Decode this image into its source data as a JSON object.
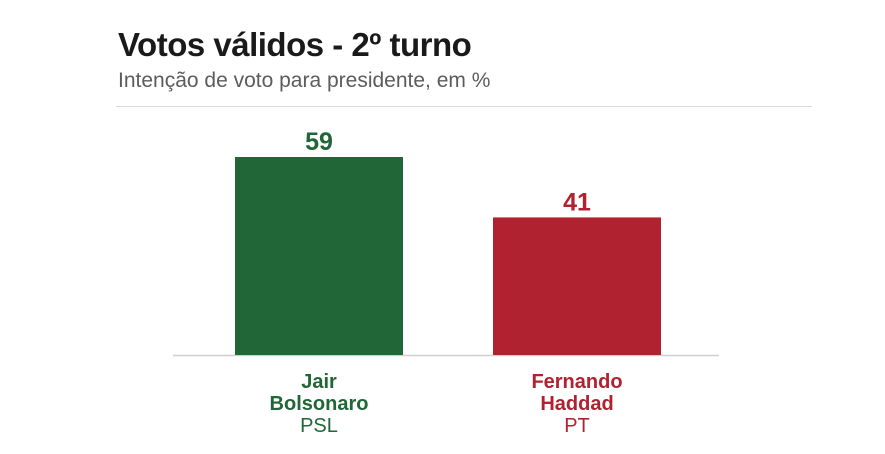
{
  "chart_data": {
    "type": "bar",
    "title": "Votos válidos - 2º turno",
    "subtitle": "Intenção de voto para presidente, em %",
    "categories": [
      {
        "name_line1": "Jair",
        "name_line2": "Bolsonaro",
        "party": "PSL",
        "value": 59,
        "value_label": "59",
        "color": "#216637"
      },
      {
        "name_line1": "Fernando",
        "name_line2": "Haddad",
        "party": "PT",
        "value": 41,
        "value_label": "41",
        "color": "#b0222f"
      }
    ],
    "ylim": [
      0,
      59
    ],
    "grid": false,
    "legend": "none",
    "baseline_color": "#cfcfcf"
  }
}
